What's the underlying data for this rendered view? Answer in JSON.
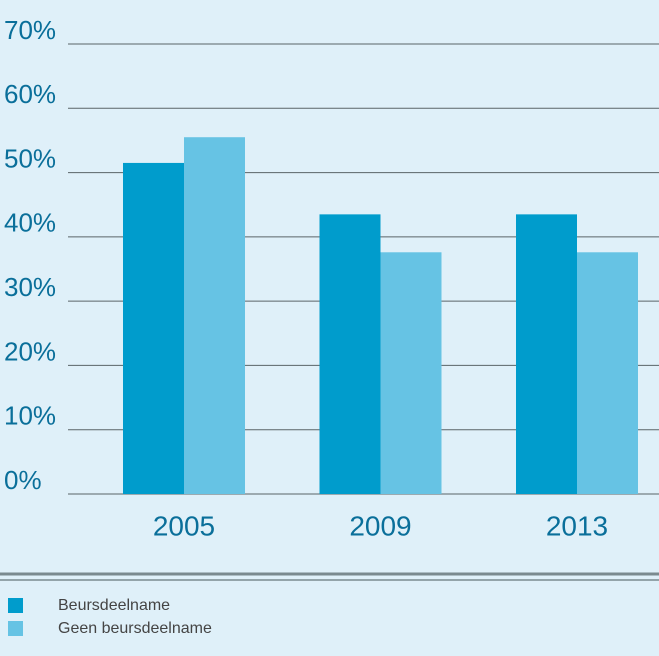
{
  "chart_data": {
    "type": "bar",
    "categories": [
      "2005",
      "2009",
      "2013"
    ],
    "series": [
      {
        "name": "Beursdeelname",
        "color": "#009ccc",
        "values": [
          51.5,
          43.5,
          43.5
        ]
      },
      {
        "name": "Geen beursdeelname",
        "color": "#66c3e4",
        "values": [
          55.5,
          37.6,
          37.6
        ]
      }
    ],
    "ylim": [
      0,
      70
    ],
    "yticks": [
      {
        "value": 0,
        "label": "0%"
      },
      {
        "value": 10,
        "label": "10%"
      },
      {
        "value": 20,
        "label": "20%"
      },
      {
        "value": 30,
        "label": "30%"
      },
      {
        "value": 40,
        "label": "40%"
      },
      {
        "value": 50,
        "label": "50%"
      },
      {
        "value": 60,
        "label": "60%"
      },
      {
        "value": 70,
        "label": "70%"
      }
    ],
    "grid": true
  }
}
